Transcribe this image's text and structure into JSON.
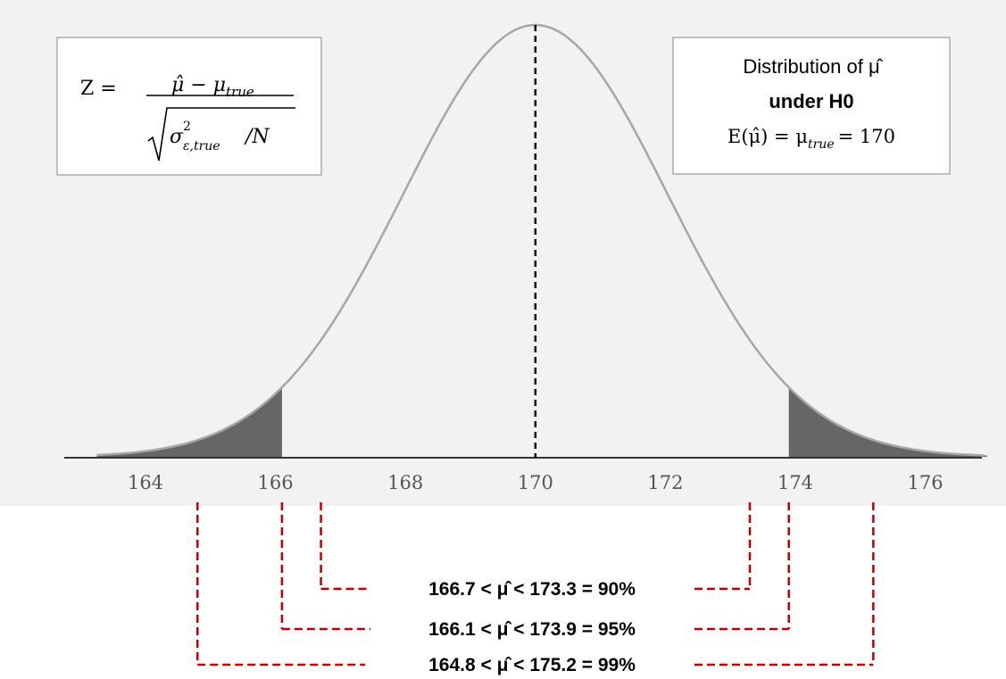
{
  "distribution": {
    "mean": 170,
    "sd": 2.04,
    "x_range": [
      163,
      177
    ],
    "tick_labels": [
      "164",
      "166",
      "168",
      "170",
      "172",
      "174",
      "176"
    ],
    "tick_values": [
      164,
      166,
      168,
      170,
      172,
      174,
      176
    ],
    "shaded_tails": {
      "left_upper": 166.1,
      "right_lower": 173.9
    },
    "colors": {
      "plot_background": "#f2f2f2",
      "curve": "#a6a6a6",
      "tail_fill": "#666666",
      "mean_line": "#000000",
      "interval_lines": "#c00000"
    }
  },
  "formula_box": {
    "lhs": "Z =",
    "numerator": "μ̂ − μ",
    "numerator_sub": "true",
    "denominator_sigma": "σ",
    "denominator_sup": "2",
    "denominator_sub": "ε,true",
    "denominator_rest": "/N"
  },
  "info_box": {
    "line1": "Distribution of μ̂",
    "line2": "under H0",
    "line3_lhs": "E(μ̂) = μ",
    "line3_sub": "true",
    "line3_rhs": "= 170"
  },
  "intervals": [
    {
      "label": "166.7 <  μ̂ < 173.3 = 90%",
      "lower": 166.7,
      "upper": 173.3
    },
    {
      "label": "166.1 < μ̂ < 173.9 = 95%",
      "lower": 166.1,
      "upper": 173.9
    },
    {
      "label": "164.8 < μ̂ < 175.2 = 99%",
      "lower": 164.8,
      "upper": 175.2
    }
  ]
}
